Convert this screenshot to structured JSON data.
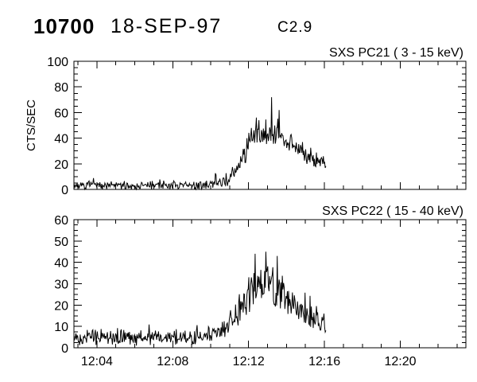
{
  "header": {
    "event_id": "10700",
    "date": "18-SEP-97",
    "flare_class": "C2.9"
  },
  "colors": {
    "foreground": "#000000",
    "background": "#ffffff"
  },
  "time_axis": {
    "xlim_minutes_after_1200": [
      2.79,
      23.46
    ],
    "minor_tick_step_minutes": 1,
    "major_ticks": [
      {
        "minute": 4,
        "label": "12:04"
      },
      {
        "minute": 8,
        "label": "12:08"
      },
      {
        "minute": 12,
        "label": "12:12"
      },
      {
        "minute": 16,
        "label": "12:16"
      },
      {
        "minute": 20,
        "label": "12:20"
      }
    ]
  },
  "chart_data": [
    {
      "type": "line",
      "title": "SXS PC21  (  3 - 15 keV)",
      "ylabel": "CTS/SEC",
      "ylim": [
        0,
        100
      ],
      "y_major_ticks": [
        0,
        20,
        40,
        60,
        80,
        100
      ],
      "y_minor_step": 5,
      "grid": false,
      "data_start_minute": 2.79,
      "data_end_minute": 16.1,
      "sample_dt_minutes": 0.0333,
      "seed": 7,
      "envelope_points_t_mean_noise": [
        [
          2.79,
          3,
          2.8
        ],
        [
          9.5,
          3,
          2.8
        ],
        [
          10.5,
          5,
          3
        ],
        [
          11.2,
          10,
          5
        ],
        [
          11.8,
          30,
          9
        ],
        [
          12.3,
          41,
          9
        ],
        [
          13.3,
          43,
          10
        ],
        [
          14.0,
          37,
          8
        ],
        [
          14.8,
          30,
          7
        ],
        [
          15.5,
          24,
          6
        ],
        [
          16.1,
          20,
          5
        ]
      ],
      "peak_spikes_t_value": [
        [
          12.4,
          56
        ],
        [
          13.2,
          72
        ],
        [
          13.6,
          62
        ]
      ]
    },
    {
      "type": "line",
      "title": "SXS PC22  ( 15 - 40 keV)",
      "ylabel": "",
      "ylim": [
        0,
        60
      ],
      "y_major_ticks": [
        0,
        10,
        20,
        30,
        40,
        50,
        60
      ],
      "y_minor_step": 2.5,
      "grid": false,
      "data_start_minute": 2.79,
      "data_end_minute": 16.1,
      "sample_dt_minutes": 0.0333,
      "seed": 13,
      "envelope_points_t_mean_noise": [
        [
          2.79,
          5,
          3
        ],
        [
          9.5,
          5,
          3
        ],
        [
          10.5,
          7,
          3.5
        ],
        [
          11.2,
          12,
          5
        ],
        [
          11.8,
          22,
          7
        ],
        [
          12.2,
          28,
          8
        ],
        [
          13.6,
          28,
          8
        ],
        [
          14.3,
          19,
          6
        ],
        [
          15.0,
          15,
          5
        ],
        [
          16.1,
          10,
          4
        ]
      ],
      "peak_spikes_t_value": [
        [
          12.35,
          44
        ],
        [
          12.9,
          45
        ],
        [
          13.5,
          43
        ]
      ]
    }
  ]
}
